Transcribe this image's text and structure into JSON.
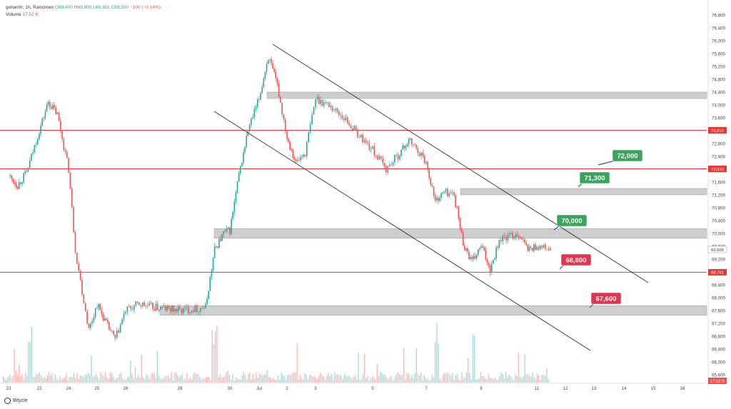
{
  "header": {
    "symbol": "gohar/irr, 1h, Ramzinex",
    "open": "O69,600",
    "high": "H69,600",
    "low": "L69,361",
    "close": "C69,500",
    "change": "−100 (−0.14%)",
    "volume_label": "Volume",
    "volume_value": "17.52 K"
  },
  "brand": "Bitycle",
  "colors": {
    "up": "#26a69a",
    "down": "#ef5350",
    "level_line": "#e53935",
    "zone": "#bdbdbd",
    "green_tag": "#3aa55a",
    "red_tag": "#e0344f",
    "channel": "#333333"
  },
  "chart_data": {
    "type": "candlestick",
    "y_ticks": [
      "76,800",
      "76,400",
      "76,000",
      "75,600",
      "75,200",
      "74,800",
      "74,400",
      "74,000",
      "73,600",
      "73,200",
      "72,800",
      "72,400",
      "72,000",
      "71,600",
      "71,200",
      "70,800",
      "70,400",
      "70,000",
      "69,600",
      "69,200",
      "68,800",
      "68,400",
      "68,000",
      "67,600",
      "67,200",
      "66,800",
      "66,400",
      "66,000",
      "65,600"
    ],
    "ylim": [
      65400,
      77000
    ],
    "x_ticks": [
      "22",
      "23",
      "24",
      "25",
      "26",
      "28",
      "30",
      "Jul",
      "2",
      "3",
      "5",
      "7",
      "9",
      "11",
      "12",
      "13",
      "14",
      "15",
      "16"
    ],
    "price_tags": [
      {
        "text": "73,212",
        "value": 73212
      },
      {
        "text": "72,010",
        "value": 72010
      },
      {
        "text": "69,500",
        "value": 69500
      },
      {
        "text": "68,791",
        "value": 68791
      }
    ],
    "volume_tag": "17.52 K",
    "horizontal_levels": [
      73212,
      72010,
      68791
    ],
    "zones": [
      {
        "from": 74200,
        "to": 74400
      },
      {
        "from": 71200,
        "to": 71400
      },
      {
        "from": 69850,
        "to": 70150
      },
      {
        "from": 67450,
        "to": 67750
      }
    ],
    "targets": [
      {
        "text": "72,000",
        "color": "green"
      },
      {
        "text": "71,300",
        "color": "green"
      },
      {
        "text": "70,000",
        "color": "green"
      },
      {
        "text": "68,800",
        "color": "red"
      },
      {
        "text": "67,600",
        "color": "red"
      }
    ],
    "channel": {
      "upper": [
        {
          "date": "Jul 1",
          "y": 75700
        },
        {
          "date": "Jul 12",
          "y": 68400
        }
      ],
      "lower": [
        {
          "date": "Jun 29",
          "y": 73600
        },
        {
          "date": "Jul 10",
          "y": 66300
        }
      ]
    },
    "price_path": [
      [
        "Jun 22",
        71800
      ],
      [
        "Jun 22",
        71500
      ],
      [
        "Jun 22",
        71900
      ],
      [
        "Jun 23",
        73200
      ],
      [
        "Jun 23",
        74100
      ],
      [
        "Jun 23",
        73700
      ],
      [
        "Jun 24",
        72000
      ],
      [
        "Jun 24",
        69500
      ],
      [
        "Jun 24",
        68200
      ],
      [
        "Jun 24",
        67000
      ],
      [
        "Jun 25",
        67800
      ],
      [
        "Jun 25",
        67200
      ],
      [
        "Jun 25",
        66700
      ],
      [
        "Jun 26",
        67600
      ],
      [
        "Jun 26",
        67800
      ],
      [
        "Jun 27",
        67700
      ],
      [
        "Jun 28",
        67600
      ],
      [
        "Jun 28",
        67650
      ],
      [
        "Jun 29",
        67700
      ],
      [
        "Jun 29",
        69500
      ],
      [
        "Jun 29",
        70000
      ],
      [
        "Jun 30",
        70100
      ],
      [
        "Jun 30",
        71800
      ],
      [
        "Jun 30",
        73200
      ],
      [
        "Jul 1",
        74200
      ],
      [
        "Jul 1",
        75500
      ],
      [
        "Jul 1",
        74600
      ],
      [
        "Jul 2",
        73000
      ],
      [
        "Jul 2",
        72200
      ],
      [
        "Jul 2",
        72500
      ],
      [
        "Jul 3",
        74200
      ],
      [
        "Jul 3",
        74000
      ],
      [
        "Jul 4",
        73600
      ],
      [
        "Jul 4",
        73100
      ],
      [
        "Jul 5",
        72600
      ],
      [
        "Jul 5",
        72000
      ],
      [
        "Jul 6",
        72500
      ],
      [
        "Jul 6",
        72900
      ],
      [
        "Jul 6",
        72600
      ],
      [
        "Jul 7",
        72200
      ],
      [
        "Jul 7",
        71000
      ],
      [
        "Jul 7",
        71300
      ],
      [
        "Jul 8",
        71200
      ],
      [
        "Jul 8",
        69700
      ],
      [
        "Jul 8",
        69100
      ],
      [
        "Jul 9",
        69600
      ],
      [
        "Jul 9",
        68900
      ],
      [
        "Jul 9",
        69800
      ],
      [
        "Jul 10",
        69900
      ],
      [
        "Jul 10",
        70000
      ],
      [
        "Jul 10",
        69500
      ],
      [
        "Jul 11",
        69600
      ],
      [
        "Jul 11",
        69500
      ]
    ],
    "volume_ylim": [
      0,
      1
    ]
  }
}
